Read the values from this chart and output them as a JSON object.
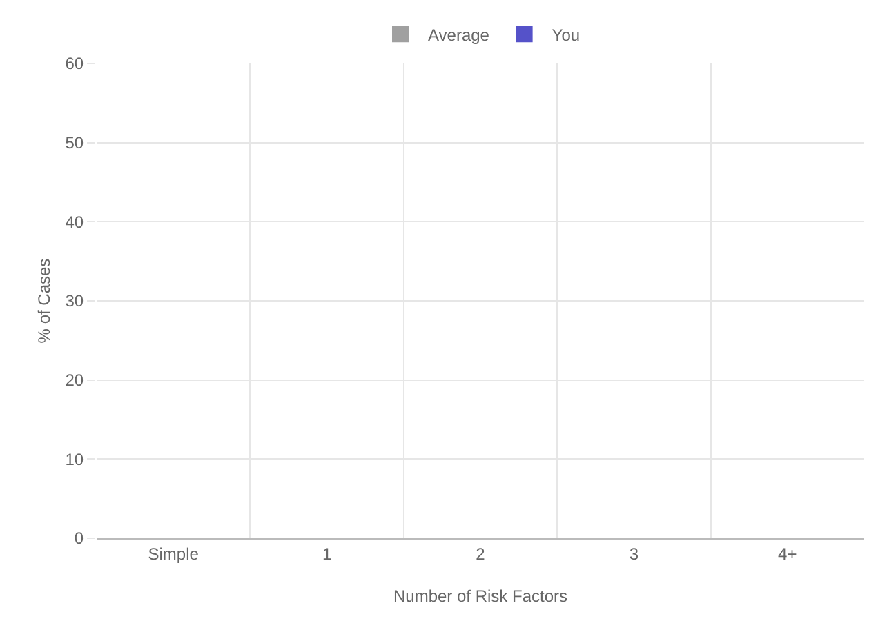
{
  "chart_data": {
    "type": "bar",
    "xlabel": "Number of Risk Factors",
    "ylabel": "% of Cases",
    "categories": [
      "Simple",
      "1",
      "2",
      "3",
      "4+"
    ],
    "series": [
      {
        "name": "Average",
        "color": "#a0a0a0",
        "values": [
          null,
          null,
          null,
          null,
          null
        ]
      },
      {
        "name": "You",
        "color": "#5552c9",
        "values": [
          null,
          null,
          null,
          null,
          null
        ]
      }
    ],
    "ylim": [
      0,
      60
    ],
    "yticks": [
      0,
      10,
      20,
      30,
      40,
      50,
      60
    ],
    "grid": true,
    "legend": "top"
  }
}
